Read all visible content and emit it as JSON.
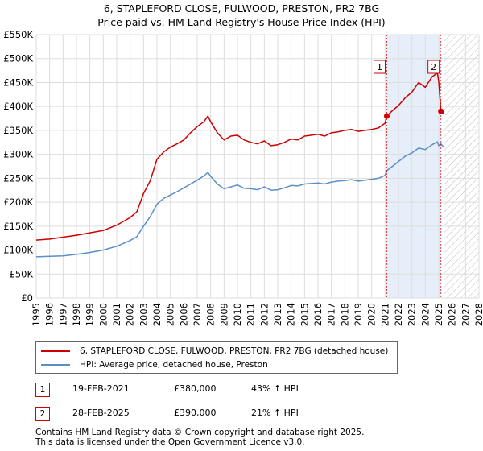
{
  "title_line1": "6, STAPLEFORD CLOSE, FULWOOD, PRESTON, PR2 7BG",
  "title_line2": "Price paid vs. HM Land Registry's House Price Index (HPI)",
  "colors": {
    "property": "#cc0000",
    "hpi": "#5b8fc9",
    "shade": "#e6eefa",
    "hatch": "#bbbbbb",
    "grid": "#dddddd"
  },
  "chart_data": {
    "type": "line",
    "title": "6, STAPLEFORD CLOSE, FULWOOD, PRESTON, PR2 7BG — Price paid vs. HM Land Registry's House Price Index (HPI)",
    "xlabel": "",
    "ylabel": "",
    "xlim": [
      1995,
      2028
    ],
    "ylim": [
      0,
      550000
    ],
    "x_ticks": [
      1995,
      1996,
      1997,
      1998,
      1999,
      2000,
      2001,
      2002,
      2003,
      2004,
      2005,
      2006,
      2007,
      2008,
      2009,
      2010,
      2011,
      2012,
      2013,
      2014,
      2015,
      2016,
      2017,
      2018,
      2019,
      2020,
      2021,
      2022,
      2023,
      2024,
      2025,
      2026,
      2027,
      2028
    ],
    "y_ticks": [
      0,
      50000,
      100000,
      150000,
      200000,
      250000,
      300000,
      350000,
      400000,
      450000,
      500000,
      550000
    ],
    "y_tick_labels": [
      "£0",
      "£50K",
      "£100K",
      "£150K",
      "£200K",
      "£250K",
      "£300K",
      "£350K",
      "£400K",
      "£450K",
      "£500K",
      "£550K"
    ],
    "series": [
      {
        "name": "6, STAPLEFORD CLOSE, FULWOOD, PRESTON, PR2 7BG (detached house)",
        "color": "#cc0000",
        "x": [
          1995.0,
          1996.0,
          1997.0,
          1998.0,
          1999.0,
          2000.0,
          2001.0,
          2002.0,
          2002.5,
          2003.0,
          2003.5,
          2004.0,
          2004.5,
          2005.0,
          2005.5,
          2006.0,
          2006.5,
          2007.0,
          2007.5,
          2007.8,
          2008.0,
          2008.5,
          2009.0,
          2009.5,
          2010.0,
          2010.5,
          2011.0,
          2011.5,
          2012.0,
          2012.5,
          2013.0,
          2013.5,
          2014.0,
          2014.5,
          2015.0,
          2015.5,
          2016.0,
          2016.5,
          2017.0,
          2017.5,
          2018.0,
          2018.5,
          2019.0,
          2019.5,
          2020.0,
          2020.5,
          2021.0,
          2021.13,
          2021.5,
          2022.0,
          2022.5,
          2023.0,
          2023.5,
          2024.0,
          2024.5,
          2024.9,
          2025.0,
          2025.16,
          2025.4
        ],
        "y": [
          121000,
          123000,
          127000,
          131000,
          136000,
          141000,
          152000,
          168000,
          180000,
          218000,
          245000,
          290000,
          305000,
          315000,
          322000,
          330000,
          345000,
          358000,
          368000,
          380000,
          368000,
          345000,
          330000,
          338000,
          340000,
          330000,
          325000,
          322000,
          328000,
          318000,
          320000,
          325000,
          332000,
          330000,
          338000,
          340000,
          342000,
          338000,
          345000,
          347000,
          350000,
          352000,
          348000,
          350000,
          352000,
          355000,
          365000,
          380000,
          390000,
          402000,
          418000,
          430000,
          450000,
          440000,
          462000,
          470000,
          452000,
          390000,
          385000
        ]
      },
      {
        "name": "HPI: Average price, detached house, Preston",
        "color": "#5b8fc9",
        "x": [
          1995.0,
          1996.0,
          1997.0,
          1998.0,
          1999.0,
          2000.0,
          2001.0,
          2002.0,
          2002.5,
          2003.0,
          2003.5,
          2004.0,
          2004.5,
          2005.0,
          2005.5,
          2006.0,
          2006.5,
          2007.0,
          2007.5,
          2007.8,
          2008.0,
          2008.5,
          2009.0,
          2009.5,
          2010.0,
          2010.5,
          2011.0,
          2011.5,
          2012.0,
          2012.5,
          2013.0,
          2013.5,
          2014.0,
          2014.5,
          2015.0,
          2015.5,
          2016.0,
          2016.5,
          2017.0,
          2017.5,
          2018.0,
          2018.5,
          2019.0,
          2019.5,
          2020.0,
          2020.5,
          2021.0,
          2021.13,
          2021.5,
          2022.0,
          2022.5,
          2023.0,
          2023.5,
          2024.0,
          2024.5,
          2024.9,
          2025.0,
          2025.16,
          2025.4
        ],
        "y": [
          86000,
          87000,
          88000,
          91000,
          95000,
          100000,
          108000,
          120000,
          128000,
          150000,
          170000,
          196000,
          208000,
          215000,
          222000,
          230000,
          238000,
          246000,
          255000,
          262000,
          254000,
          238000,
          228000,
          232000,
          236000,
          229000,
          228000,
          226000,
          232000,
          225000,
          226000,
          230000,
          235000,
          234000,
          238000,
          239000,
          240000,
          238000,
          242000,
          244000,
          245000,
          247000,
          244000,
          246000,
          248000,
          250000,
          256000,
          266000,
          274000,
          285000,
          296000,
          303000,
          313000,
          310000,
          320000,
          326000,
          318000,
          322000,
          314000
        ]
      }
    ],
    "sales": [
      {
        "label": "1",
        "x": 2021.13,
        "price": 380000
      },
      {
        "label": "2",
        "x": 2025.16,
        "price": 390000
      }
    ],
    "shaded_region": [
      2021.13,
      2025.16
    ],
    "hatched_region": [
      2025.4,
      2028
    ],
    "legend_position": "below"
  },
  "legend": {
    "property_label": "6, STAPLEFORD CLOSE, FULWOOD, PRESTON, PR2 7BG (detached house)",
    "hpi_label": "HPI: Average price, detached house, Preston"
  },
  "sales_table": [
    {
      "num": "1",
      "date": "19-FEB-2021",
      "price": "£380,000",
      "hpi": "43% ↑ HPI"
    },
    {
      "num": "2",
      "date": "28-FEB-2025",
      "price": "£390,000",
      "hpi": "21% ↑ HPI"
    }
  ],
  "footer_line1": "Contains HM Land Registry data © Crown copyright and database right 2025.",
  "footer_line2": "This data is licensed under the Open Government Licence v3.0."
}
